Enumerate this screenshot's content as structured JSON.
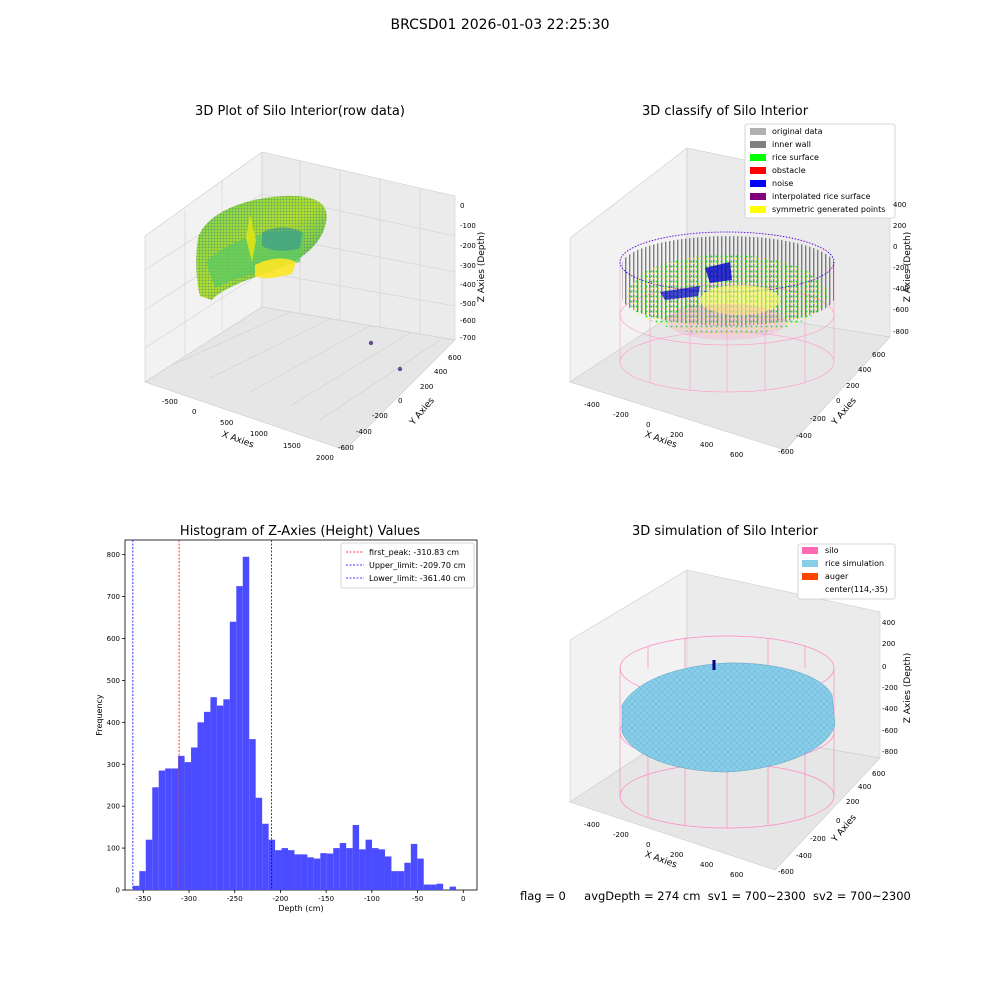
{
  "figure": {
    "suptitle": "BRCSD01 2026-01-03 22:25:30",
    "footer": {
      "flag": "flag = 0",
      "avg_depth": "avgDepth = 274 cm",
      "sv1": "sv1 = 700~2300",
      "sv2": "sv2 = 700~2300"
    }
  },
  "plot_raw": {
    "title": "3D Plot of Silo Interior(row data)",
    "xlabel": "X Axies",
    "ylabel": "Y Axies",
    "zlabel": "Z Axies (Depth)",
    "x_ticks": [
      "-500",
      "0",
      "500",
      "1000",
      "1500",
      "2000"
    ],
    "y_ticks": [
      "-600",
      "-400",
      "-200",
      "0",
      "200",
      "400",
      "600"
    ],
    "z_ticks": [
      "0",
      "-100",
      "-200",
      "-300",
      "-400",
      "-500",
      "-600",
      "-700"
    ]
  },
  "plot_classify": {
    "title": "3D classify of Silo Interior",
    "xlabel": "X Axies",
    "ylabel": "Y Axies",
    "zlabel": "Z Axies (Depth)",
    "x_ticks": [
      "-400",
      "-200",
      "0",
      "200",
      "400",
      "600"
    ],
    "y_ticks": [
      "-600",
      "-400",
      "-200",
      "0",
      "200",
      "400",
      "600"
    ],
    "z_ticks": [
      "400",
      "200",
      "0",
      "-200",
      "-400",
      "-600",
      "-800"
    ],
    "legend": [
      {
        "label": "original data",
        "color": "#b0b0b0"
      },
      {
        "label": "inner wall",
        "color": "#808080"
      },
      {
        "label": "rice surface",
        "color": "#00ff00"
      },
      {
        "label": "obstacle",
        "color": "#ff0000"
      },
      {
        "label": "noise",
        "color": "#0000ff"
      },
      {
        "label": "interpolated rice surface",
        "color": "#800080"
      },
      {
        "label": "symmetric generated points",
        "color": "#ffff00"
      }
    ]
  },
  "plot_sim": {
    "title": "3D simulation of Silo Interior",
    "xlabel": "X Axies",
    "ylabel": "Y Axies",
    "zlabel": "Z Axies (Depth)",
    "x_ticks": [
      "-400",
      "-200",
      "0",
      "200",
      "400",
      "600"
    ],
    "y_ticks": [
      "-600",
      "-400",
      "-200",
      "0",
      "200",
      "400",
      "600"
    ],
    "z_ticks": [
      "400",
      "200",
      "0",
      "-200",
      "-400",
      "-600",
      "-800"
    ],
    "legend": [
      {
        "label": "silo",
        "color": "#ff69b4"
      },
      {
        "label": "rice simulation",
        "color": "#87ceeb"
      },
      {
        "label": "auger",
        "color": "#ff4500"
      },
      {
        "label": "center(114,-35)",
        "color": ""
      }
    ]
  },
  "chart_data": {
    "type": "bar",
    "title": "Histogram of Z-Axies (Height) Values",
    "xlabel": "Depth (cm)",
    "ylabel": "Frequency",
    "xlim": [
      -370,
      15
    ],
    "ylim": [
      0,
      835
    ],
    "bar_color": "#4b4bff",
    "x_ticks": [
      -350,
      -300,
      -250,
      -200,
      -150,
      -100,
      -50,
      0
    ],
    "y_ticks": [
      0,
      100,
      200,
      300,
      400,
      500,
      600,
      700,
      800
    ],
    "bin_width": 7.07,
    "bin_starts": [
      -361.4,
      -354.33,
      -347.26,
      -340.19,
      -333.12,
      -326.05,
      -318.98,
      -311.91,
      -304.84,
      -297.77,
      -290.7,
      -283.63,
      -276.56,
      -269.49,
      -262.42,
      -255.35,
      -248.28,
      -241.21,
      -234.14,
      -227.07,
      -220.0,
      -212.93,
      -205.86,
      -198.79,
      -191.72,
      -184.65,
      -177.58,
      -170.51,
      -163.44,
      -156.37,
      -149.3,
      -142.23,
      -135.16,
      -128.09,
      -121.02,
      -113.95,
      -106.88,
      -99.81,
      -92.74,
      -85.67,
      -78.6,
      -71.53,
      -64.46,
      -57.39,
      -50.32,
      -43.25,
      -36.18,
      -29.11,
      -22.04,
      -14.97,
      -7.9,
      -0.83
    ],
    "values": [
      10,
      45,
      120,
      245,
      285,
      290,
      290,
      320,
      305,
      340,
      400,
      425,
      460,
      440,
      455,
      640,
      725,
      795,
      360,
      220,
      158,
      120,
      95,
      100,
      95,
      85,
      85,
      78,
      75,
      88,
      87,
      100,
      112,
      100,
      155,
      97,
      120,
      100,
      97,
      80,
      45,
      45,
      65,
      110,
      75,
      13,
      13,
      15,
      0,
      8,
      0,
      0
    ],
    "vlines": [
      {
        "label": "first_peak: -310.83 cm",
        "x": -310.83,
        "color": "#ff0000"
      },
      {
        "label": "Upper_limit: -209.70 cm",
        "x": -209.7,
        "color": "#0000ff"
      },
      {
        "label": "Lower_limit: -361.40 cm",
        "x": -361.4,
        "color": "#0000ff"
      }
    ],
    "legend_position": "top-right"
  }
}
